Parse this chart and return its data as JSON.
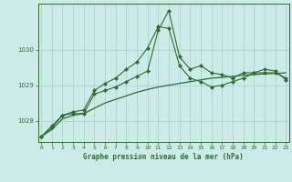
{
  "bg_color": "#cceae7",
  "grid_color": "#aad4d0",
  "line_color": "#2d6e2d",
  "x_values": [
    0,
    1,
    2,
    3,
    4,
    5,
    6,
    7,
    8,
    9,
    10,
    11,
    12,
    13,
    14,
    15,
    16,
    17,
    18,
    19,
    20,
    21,
    22,
    23
  ],
  "line1_marked": [
    1027.55,
    1027.85,
    1028.15,
    1028.25,
    1028.3,
    1028.85,
    1029.05,
    1029.2,
    1029.45,
    1029.65,
    1030.05,
    1030.65,
    1030.6,
    1029.55,
    1029.2,
    1029.1,
    1028.95,
    1029.0,
    1029.1,
    1029.2,
    1029.35,
    1029.35,
    1029.35,
    1029.2
  ],
  "line2_marked": [
    1027.55,
    1027.8,
    1028.15,
    1028.2,
    1028.2,
    1028.75,
    1028.85,
    1028.95,
    1029.1,
    1029.25,
    1029.4,
    1030.55,
    1031.1,
    1029.8,
    1029.45,
    1029.55,
    1029.35,
    1029.3,
    1029.2,
    1029.35,
    1029.35,
    1029.45,
    1029.4,
    1029.15
  ],
  "line3_smooth": [
    1027.55,
    1027.75,
    1028.05,
    1028.15,
    1028.2,
    1028.35,
    1028.5,
    1028.6,
    1028.7,
    1028.8,
    1028.88,
    1028.95,
    1029.0,
    1029.05,
    1029.1,
    1029.15,
    1029.2,
    1029.22,
    1029.25,
    1029.28,
    1029.3,
    1029.32,
    1029.33,
    1029.35
  ],
  "ylim": [
    1027.4,
    1031.3
  ],
  "yticks": [
    1028,
    1029,
    1030
  ],
  "xlabel": "Graphe pression niveau de la mer (hPa)",
  "xticks": [
    0,
    1,
    2,
    3,
    4,
    5,
    6,
    7,
    8,
    9,
    10,
    11,
    12,
    13,
    14,
    15,
    16,
    17,
    18,
    19,
    20,
    21,
    22,
    23
  ],
  "xlim": [
    -0.3,
    23.3
  ]
}
